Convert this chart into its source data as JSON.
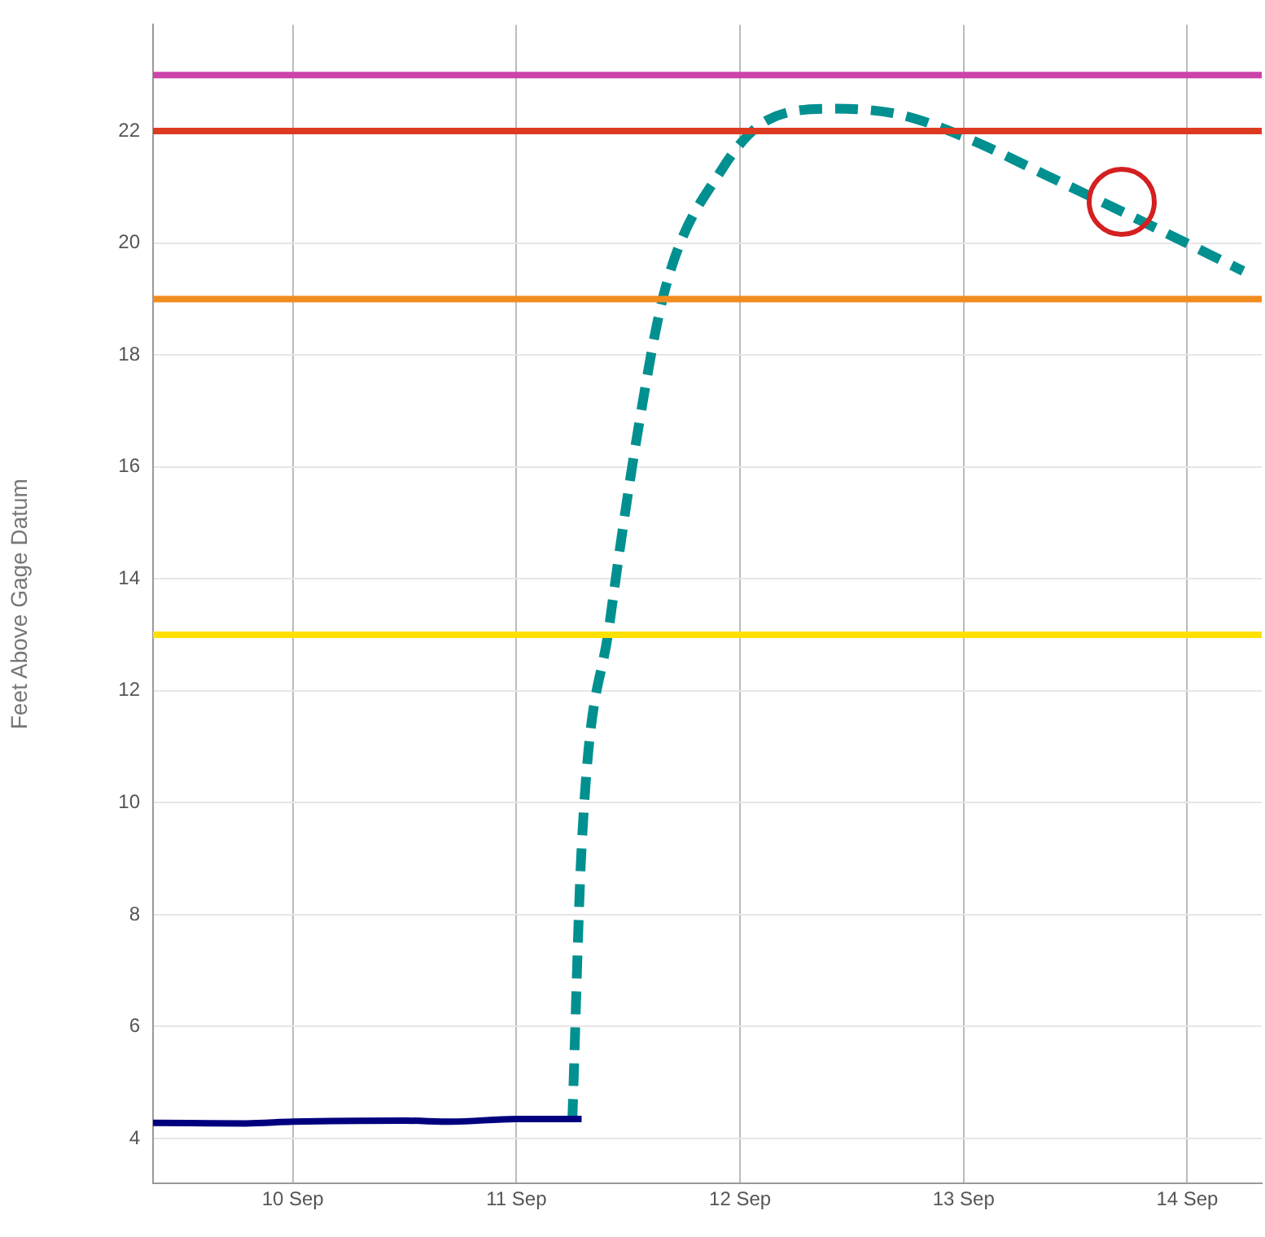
{
  "chart_data": {
    "type": "line",
    "ylabel": "Feet Above Gage Datum",
    "xlim": [
      "--09-09T09:00",
      "--09-14T08:00"
    ],
    "xticks": [
      {
        "value": "--09-10",
        "label": "10 Sep"
      },
      {
        "value": "--09-11",
        "label": "11 Sep"
      },
      {
        "value": "--09-12",
        "label": "12 Sep"
      },
      {
        "value": "--09-13",
        "label": "13 Sep"
      },
      {
        "value": "--09-14",
        "label": "14 Sep"
      }
    ],
    "ylim": [
      3.2,
      23.9
    ],
    "yticks": [
      4,
      6,
      8,
      10,
      12,
      14,
      16,
      18,
      20,
      22
    ],
    "grid": true,
    "legend": false,
    "marker": "none",
    "series": [
      {
        "color": "#00007f",
        "line_style": "solid",
        "x": [
          "--09-09T09:00",
          "--09-09T19:00",
          "--09-10T00:00",
          "--09-10T12:00",
          "--09-10T17:00",
          "--09-11T00:00",
          "--09-11T07:00"
        ],
        "values": [
          4.28,
          4.27,
          4.3,
          4.32,
          4.3,
          4.35,
          4.35
        ]
      },
      {
        "color": "#009090",
        "line_style": "dashed",
        "x": [
          "--09-11T06:00",
          "--09-11T07:00",
          "--09-11T10:00",
          "--09-11T13:00",
          "--09-11T16:00",
          "--09-11T22:00",
          "--09-12T03:00",
          "--09-12T10:00",
          "--09-12T17:00",
          "--09-13T00:00",
          "--09-13T09:00",
          "--09-13T19:00",
          "--09-14T06:00"
        ],
        "values": [
          4.3,
          9.2,
          13.2,
          16.6,
          19.2,
          21.3,
          22.2,
          22.4,
          22.3,
          21.9,
          21.2,
          20.4,
          19.5
        ]
      }
    ],
    "ref_lines": [
      {
        "axis": "y",
        "value": 23,
        "color": "#cc44aa"
      },
      {
        "axis": "y",
        "value": 22,
        "color": "#dd3a22"
      },
      {
        "axis": "y",
        "value": 19,
        "color": "#f28c1e"
      },
      {
        "axis": "y",
        "value": 13,
        "color": "#ffe000"
      }
    ]
  }
}
